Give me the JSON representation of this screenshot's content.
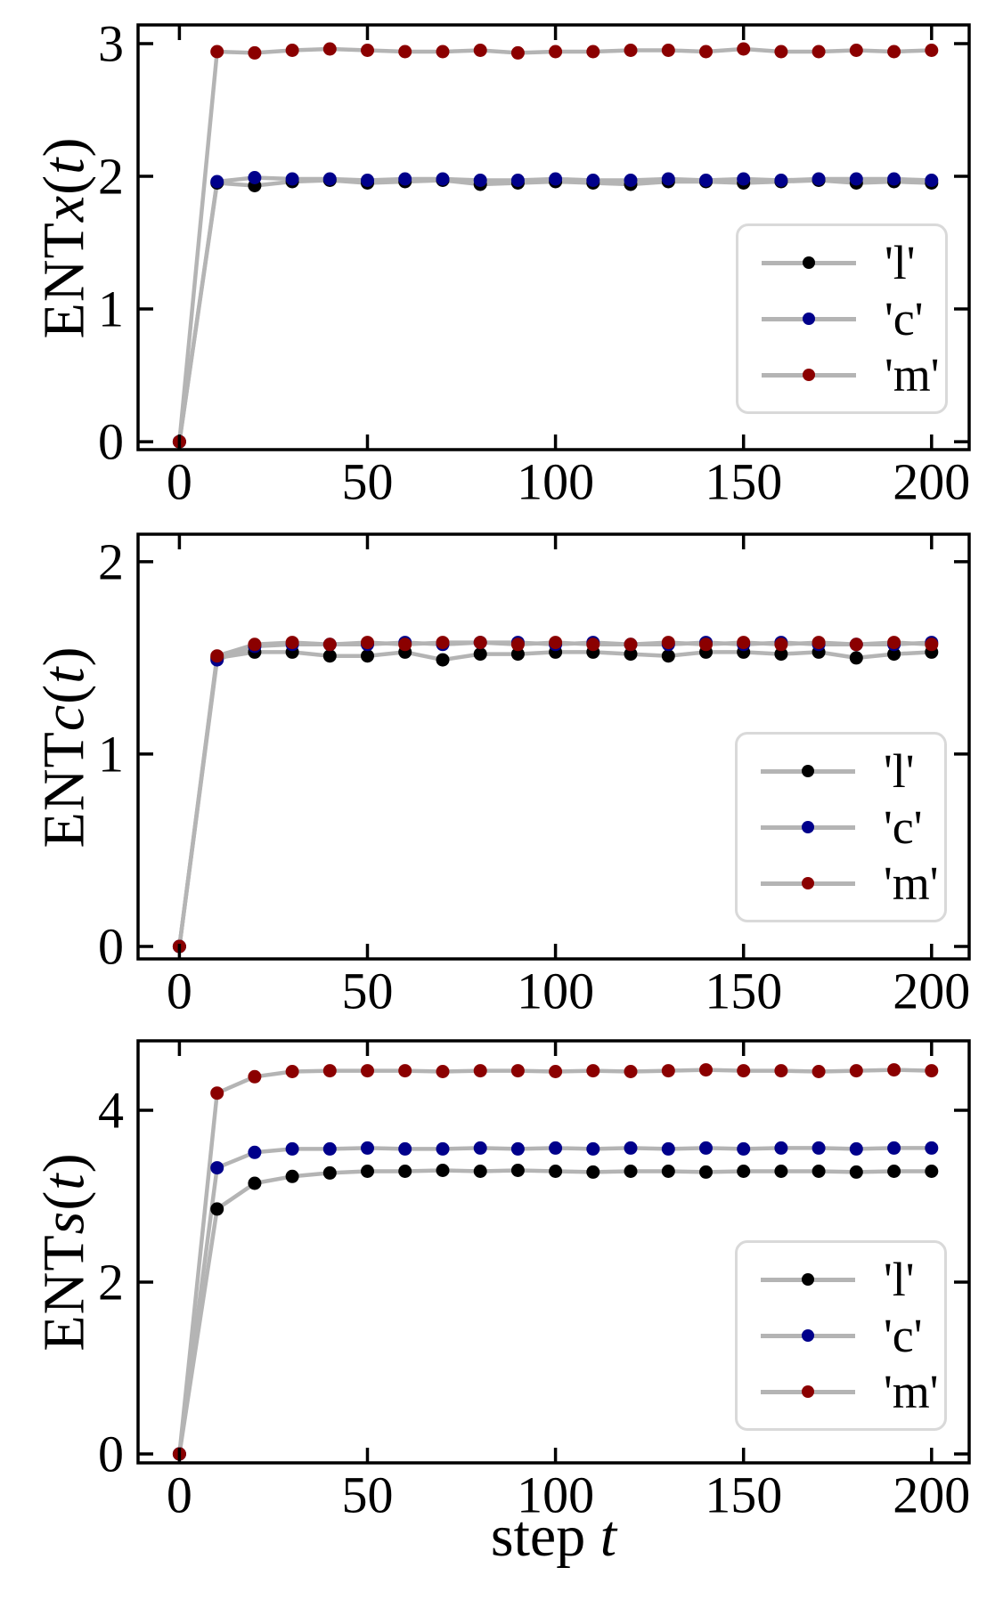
{
  "page": {
    "background": "#ffffff"
  },
  "styles": {
    "connector_line_color": "#b4b4b4",
    "spine_color": "#000000",
    "tick_label_color": "#000000",
    "legend_border_color": "#d9d9d9",
    "legend_background": "#ffffff",
    "series_colors": {
      "l": "#000000",
      "c": "#00008b",
      "m": "#8b0000"
    }
  },
  "xlabel": {
    "roman": "step ",
    "italic": "t",
    "text": "step t"
  },
  "chart_data": [
    {
      "type": "line",
      "ylabel": {
        "text": "ENTx(t)",
        "roman": "ENT",
        "italic_var": "x",
        "open_paren": "(",
        "italic_arg": "t",
        "close_paren": ")"
      },
      "xlabel": "",
      "x": [
        0,
        10,
        20,
        30,
        40,
        50,
        60,
        70,
        80,
        90,
        100,
        110,
        120,
        130,
        140,
        150,
        160,
        170,
        180,
        190,
        200
      ],
      "xticks": [
        0,
        50,
        100,
        150,
        200
      ],
      "yticks": [
        0,
        1,
        2,
        3
      ],
      "xlim": [
        -11,
        210
      ],
      "ylim": [
        -0.06,
        3.141
      ],
      "grid": false,
      "legend": {
        "position": "center-right",
        "labels": [
          "'l'",
          "'c'",
          "'m'"
        ]
      },
      "series": [
        {
          "name": "l",
          "label": "'l'",
          "color": "#000000",
          "values": [
            0,
            1.95,
            1.93,
            1.96,
            1.97,
            1.95,
            1.96,
            1.97,
            1.94,
            1.95,
            1.96,
            1.95,
            1.94,
            1.96,
            1.96,
            1.95,
            1.96,
            1.97,
            1.95,
            1.96,
            1.95
          ]
        },
        {
          "name": "c",
          "label": "'c'",
          "color": "#00008b",
          "values": [
            0,
            1.96,
            1.99,
            1.98,
            1.98,
            1.97,
            1.98,
            1.98,
            1.97,
            1.97,
            1.98,
            1.97,
            1.97,
            1.98,
            1.97,
            1.98,
            1.97,
            1.98,
            1.98,
            1.98,
            1.97
          ]
        },
        {
          "name": "m",
          "label": "'m'",
          "color": "#8b0000",
          "values": [
            0,
            2.94,
            2.93,
            2.95,
            2.96,
            2.95,
            2.94,
            2.94,
            2.95,
            2.93,
            2.94,
            2.94,
            2.95,
            2.95,
            2.94,
            2.96,
            2.94,
            2.94,
            2.95,
            2.94,
            2.95
          ]
        }
      ]
    },
    {
      "type": "line",
      "ylabel": {
        "text": "ENTc(t)",
        "roman": "ENT",
        "italic_var": "c",
        "open_paren": "(",
        "italic_arg": "t",
        "close_paren": ")"
      },
      "xlabel": "",
      "x": [
        0,
        10,
        20,
        30,
        40,
        50,
        60,
        70,
        80,
        90,
        100,
        110,
        120,
        130,
        140,
        150,
        160,
        170,
        180,
        190,
        200
      ],
      "xticks": [
        0,
        50,
        100,
        150,
        200
      ],
      "yticks": [
        0,
        1,
        2
      ],
      "xlim": [
        -11,
        210
      ],
      "ylim": [
        -0.065,
        2.143
      ],
      "grid": false,
      "legend": {
        "position": "lower-right",
        "labels": [
          "'l'",
          "'c'",
          "'m'"
        ]
      },
      "series": [
        {
          "name": "l",
          "label": "'l'",
          "color": "#000000",
          "values": [
            0,
            1.5,
            1.53,
            1.53,
            1.51,
            1.51,
            1.53,
            1.49,
            1.52,
            1.52,
            1.53,
            1.53,
            1.52,
            1.51,
            1.53,
            1.53,
            1.52,
            1.53,
            1.5,
            1.52,
            1.53
          ]
        },
        {
          "name": "c",
          "label": "'c'",
          "color": "#00008b",
          "values": [
            0,
            1.49,
            1.56,
            1.57,
            1.57,
            1.57,
            1.58,
            1.57,
            1.58,
            1.58,
            1.57,
            1.58,
            1.57,
            1.57,
            1.58,
            1.57,
            1.58,
            1.57,
            1.57,
            1.57,
            1.58
          ]
        },
        {
          "name": "m",
          "label": "'m'",
          "color": "#8b0000",
          "values": [
            0,
            1.51,
            1.57,
            1.58,
            1.57,
            1.58,
            1.57,
            1.58,
            1.58,
            1.57,
            1.58,
            1.57,
            1.57,
            1.58,
            1.57,
            1.58,
            1.57,
            1.58,
            1.57,
            1.58,
            1.57
          ]
        }
      ]
    },
    {
      "type": "line",
      "ylabel": {
        "text": "ENTs(t)",
        "roman": "ENT",
        "italic_var": "s",
        "open_paren": "(",
        "italic_arg": "t",
        "close_paren": ")"
      },
      "xlabel": "step t",
      "x": [
        0,
        10,
        20,
        30,
        40,
        50,
        60,
        70,
        80,
        90,
        100,
        110,
        120,
        130,
        140,
        150,
        160,
        170,
        180,
        190,
        200
      ],
      "xticks": [
        0,
        50,
        100,
        150,
        200
      ],
      "yticks": [
        0,
        2,
        4
      ],
      "xlim": [
        -11,
        210
      ],
      "ylim": [
        -0.104,
        4.808
      ],
      "grid": false,
      "legend": {
        "position": "lower-right",
        "labels": [
          "'l'",
          "'c'",
          "'m'"
        ]
      },
      "series": [
        {
          "name": "l",
          "label": "'l'",
          "color": "#000000",
          "values": [
            0,
            2.85,
            3.15,
            3.23,
            3.27,
            3.29,
            3.29,
            3.3,
            3.29,
            3.3,
            3.29,
            3.28,
            3.29,
            3.29,
            3.28,
            3.29,
            3.29,
            3.29,
            3.28,
            3.29,
            3.29
          ]
        },
        {
          "name": "c",
          "label": "'c'",
          "color": "#00008b",
          "values": [
            0,
            3.33,
            3.51,
            3.55,
            3.55,
            3.56,
            3.55,
            3.55,
            3.56,
            3.55,
            3.56,
            3.55,
            3.56,
            3.55,
            3.56,
            3.55,
            3.56,
            3.56,
            3.55,
            3.56,
            3.56
          ]
        },
        {
          "name": "m",
          "label": "'m'",
          "color": "#8b0000",
          "values": [
            0,
            4.2,
            4.39,
            4.45,
            4.46,
            4.46,
            4.46,
            4.45,
            4.46,
            4.46,
            4.45,
            4.46,
            4.45,
            4.46,
            4.47,
            4.46,
            4.46,
            4.45,
            4.46,
            4.47,
            4.46
          ]
        }
      ]
    }
  ]
}
